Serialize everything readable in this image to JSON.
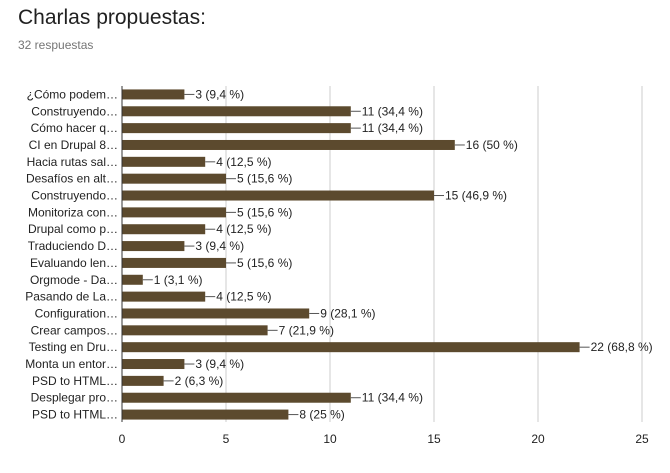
{
  "header": {
    "title": "Charlas propuestas:",
    "responses": "32 respuestas"
  },
  "colors": {
    "bar": "#5c4a2e",
    "grid": "#cccccc",
    "axis": "#333333",
    "text": "#222222"
  },
  "chart_data": {
    "type": "bar",
    "orientation": "horizontal",
    "title": "",
    "xlabel": "",
    "ylabel": "",
    "xlim": [
      0,
      25
    ],
    "x_ticks": [
      "0",
      "5",
      "10",
      "15",
      "20",
      "25"
    ],
    "grid": true,
    "categories": [
      "¿Cómo podem…",
      "Construyendo…",
      "Cómo hacer q…",
      "CI en Drupal 8…",
      "Hacia rutas sal…",
      "Desafíos en alt…",
      "Construyendo…",
      "Monitoriza con…",
      "Drupal como p…",
      "Traduciendo D…",
      "Evaluando len…",
      "Orgmode - Da…",
      "Pasando de La…",
      "Configuration…",
      "Crear campos…",
      "Testing en Dru…",
      "Monta un entor…",
      "PSD to HTML…",
      "Desplegar pro…",
      "PSD to HTML…"
    ],
    "values": [
      3,
      11,
      11,
      16,
      4,
      5,
      15,
      5,
      4,
      3,
      5,
      1,
      4,
      9,
      7,
      22,
      3,
      2,
      11,
      8
    ],
    "data_labels": [
      "3 (9,4 %)",
      "11 (34,4 %)",
      "11 (34,4 %)",
      "16 (50 %)",
      "4 (12,5 %)",
      "5 (15,6 %)",
      "15 (46,9 %)",
      "5 (15,6 %)",
      "4 (12,5 %)",
      "3 (9,4 %)",
      "5 (15,6 %)",
      "1 (3,1 %)",
      "4 (12,5 %)",
      "9 (28,1 %)",
      "7 (21,9 %)",
      "22 (68,8 %)",
      "3 (9,4 %)",
      "2 (6,3 %)",
      "11 (34,4 %)",
      "8 (25 %)"
    ]
  }
}
